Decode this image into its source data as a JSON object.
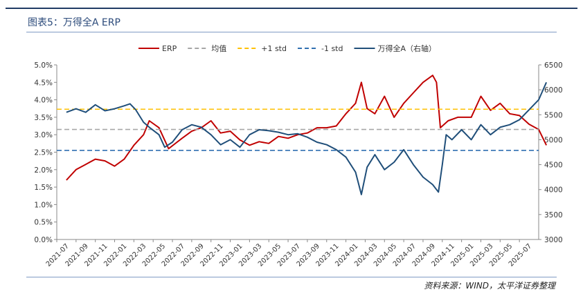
{
  "header": {
    "title": "图表5：万得全A ERP"
  },
  "footer": {
    "source": "资料来源：WIND，太平洋证券整理"
  },
  "chart_data": {
    "type": "line",
    "legend_position": "top",
    "x_labels": [
      "2021-07",
      "2021-09",
      "2021-11",
      "2022-01",
      "2022-03",
      "2022-05",
      "2022-07",
      "2022-09",
      "2022-11",
      "2023-01",
      "2023-03",
      "2023-05",
      "2023-07",
      "2023-09",
      "2023-11",
      "2024-01",
      "2024-03",
      "2024-05",
      "2024-07",
      "2024-09",
      "2024-11",
      "2025-01",
      "2025-03",
      "2025-05",
      "2025-07"
    ],
    "y_left": {
      "min": 0,
      "max": 5.0,
      "ticks": [
        "0.0%",
        "0.5%",
        "1.0%",
        "1.5%",
        "2.0%",
        "2.5%",
        "3.0%",
        "3.5%",
        "4.0%",
        "4.5%",
        "5.0%"
      ]
    },
    "y_right": {
      "min": 3000,
      "max": 6500,
      "ticks": [
        "3000",
        "3500",
        "4000",
        "4500",
        "5000",
        "5500",
        "6000",
        "6500"
      ]
    },
    "series": [
      {
        "name": "ERP",
        "axis": "left",
        "color": "#c00000",
        "style": "solid",
        "points": [
          [
            0,
            1.7
          ],
          [
            0.5,
            2.0
          ],
          [
            1,
            2.15
          ],
          [
            1.5,
            2.3
          ],
          [
            2,
            2.25
          ],
          [
            2.5,
            2.1
          ],
          [
            3,
            2.3
          ],
          [
            3.5,
            2.7
          ],
          [
            4,
            3.0
          ],
          [
            4.3,
            3.4
          ],
          [
            4.8,
            3.2
          ],
          [
            5.3,
            2.6
          ],
          [
            6,
            2.9
          ],
          [
            6.5,
            3.1
          ],
          [
            7,
            3.2
          ],
          [
            7.5,
            3.4
          ],
          [
            8,
            3.05
          ],
          [
            8.5,
            3.1
          ],
          [
            9,
            2.85
          ],
          [
            9.5,
            2.7
          ],
          [
            10,
            2.8
          ],
          [
            10.5,
            2.75
          ],
          [
            11,
            2.95
          ],
          [
            11.5,
            2.9
          ],
          [
            12,
            3.0
          ],
          [
            12.5,
            3.05
          ],
          [
            13,
            3.2
          ],
          [
            13.5,
            3.2
          ],
          [
            14,
            3.25
          ],
          [
            14.5,
            3.6
          ],
          [
            15,
            3.9
          ],
          [
            15.3,
            4.5
          ],
          [
            15.6,
            3.75
          ],
          [
            16,
            3.6
          ],
          [
            16.5,
            4.1
          ],
          [
            17,
            3.5
          ],
          [
            17.5,
            3.9
          ],
          [
            18,
            4.2
          ],
          [
            18.5,
            4.5
          ],
          [
            19,
            4.7
          ],
          [
            19.2,
            4.5
          ],
          [
            19.4,
            3.2
          ],
          [
            19.8,
            3.4
          ],
          [
            20.3,
            3.5
          ],
          [
            21,
            3.5
          ],
          [
            21.5,
            4.1
          ],
          [
            22,
            3.7
          ],
          [
            22.5,
            3.9
          ],
          [
            23,
            3.6
          ],
          [
            23.5,
            3.55
          ],
          [
            24,
            3.3
          ],
          [
            24.5,
            3.15
          ],
          [
            24.9,
            2.7
          ]
        ]
      },
      {
        "name": "均值",
        "axis": "left",
        "color": "#a6a6a6",
        "style": "dash",
        "constant": 3.15,
        "points": []
      },
      {
        "name": "+1 std",
        "axis": "left",
        "color": "#ffc000",
        "style": "dash",
        "constant": 3.73,
        "points": []
      },
      {
        "name": "-1 std",
        "axis": "left",
        "color": "#2f6fb0",
        "style": "dash",
        "constant": 2.55,
        "points": []
      },
      {
        "name": "万得全A（右轴）",
        "axis": "right",
        "color": "#1f4e79",
        "style": "solid",
        "points": [
          [
            0,
            5550
          ],
          [
            0.5,
            5620
          ],
          [
            1,
            5550
          ],
          [
            1.5,
            5700
          ],
          [
            2,
            5580
          ],
          [
            2.5,
            5620
          ],
          [
            3,
            5680
          ],
          [
            3.3,
            5720
          ],
          [
            3.6,
            5600
          ],
          [
            4,
            5350
          ],
          [
            4.3,
            5250
          ],
          [
            4.8,
            5100
          ],
          [
            5.1,
            4850
          ],
          [
            5.5,
            4950
          ],
          [
            6,
            5200
          ],
          [
            6.5,
            5300
          ],
          [
            7,
            5250
          ],
          [
            7.5,
            5100
          ],
          [
            8,
            4900
          ],
          [
            8.5,
            5000
          ],
          [
            9,
            4850
          ],
          [
            9.5,
            5100
          ],
          [
            10,
            5200
          ],
          [
            10.5,
            5180
          ],
          [
            11,
            5150
          ],
          [
            11.5,
            5100
          ],
          [
            12,
            5120
          ],
          [
            12.5,
            5050
          ],
          [
            13,
            4950
          ],
          [
            13.5,
            4900
          ],
          [
            14,
            4800
          ],
          [
            14.5,
            4650
          ],
          [
            15,
            4350
          ],
          [
            15.3,
            3900
          ],
          [
            15.6,
            4450
          ],
          [
            16,
            4700
          ],
          [
            16.5,
            4400
          ],
          [
            17,
            4550
          ],
          [
            17.5,
            4800
          ],
          [
            18,
            4500
          ],
          [
            18.5,
            4250
          ],
          [
            19,
            4100
          ],
          [
            19.3,
            3950
          ],
          [
            19.5,
            4500
          ],
          [
            19.7,
            5100
          ],
          [
            20,
            5000
          ],
          [
            20.5,
            5200
          ],
          [
            21,
            5000
          ],
          [
            21.5,
            5300
          ],
          [
            22,
            5100
          ],
          [
            22.5,
            5250
          ],
          [
            23,
            5300
          ],
          [
            23.5,
            5400
          ],
          [
            24,
            5600
          ],
          [
            24.5,
            5800
          ],
          [
            24.9,
            6150
          ]
        ]
      }
    ]
  }
}
